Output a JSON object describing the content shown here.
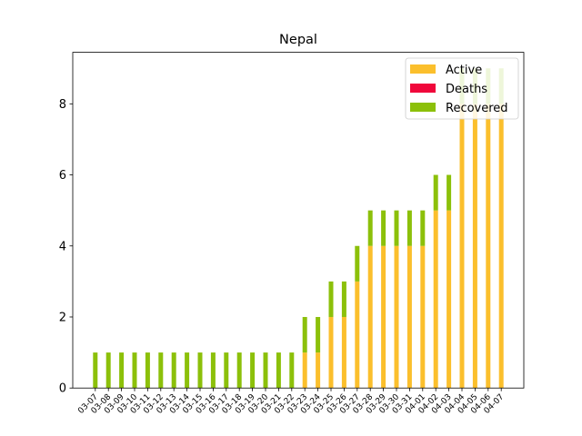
{
  "chart_data": {
    "type": "bar",
    "stacked": true,
    "title": "Nepal",
    "xlabel": "",
    "ylabel": "",
    "ylim": [
      0,
      9.45
    ],
    "yticks": [
      0,
      2,
      4,
      6,
      8
    ],
    "grid": false,
    "legend_position": "top-right",
    "categories": [
      "03-07",
      "03-08",
      "03-09",
      "03-10",
      "03-11",
      "03-12",
      "03-13",
      "03-14",
      "03-15",
      "03-16",
      "03-17",
      "03-18",
      "03-19",
      "03-20",
      "03-21",
      "03-22",
      "03-23",
      "03-24",
      "03-25",
      "03-26",
      "03-27",
      "03-28",
      "03-29",
      "03-30",
      "03-31",
      "04-01",
      "04-02",
      "04-03",
      "04-04",
      "04-05",
      "04-06",
      "04-07"
    ],
    "series": [
      {
        "name": "Active",
        "color": "#fbbf2c",
        "values": [
          0,
          0,
          0,
          0,
          0,
          0,
          0,
          0,
          0,
          0,
          0,
          0,
          0,
          0,
          0,
          0,
          1,
          1,
          2,
          2,
          3,
          4,
          4,
          4,
          4,
          4,
          5,
          5,
          8,
          8,
          8,
          8
        ]
      },
      {
        "name": "Deaths",
        "color": "#f0073b",
        "values": [
          0,
          0,
          0,
          0,
          0,
          0,
          0,
          0,
          0,
          0,
          0,
          0,
          0,
          0,
          0,
          0,
          0,
          0,
          0,
          0,
          0,
          0,
          0,
          0,
          0,
          0,
          0,
          0,
          0,
          0,
          0,
          0
        ]
      },
      {
        "name": "Recovered",
        "color": "#8cc00a",
        "values": [
          1,
          1,
          1,
          1,
          1,
          1,
          1,
          1,
          1,
          1,
          1,
          1,
          1,
          1,
          1,
          1,
          1,
          1,
          1,
          1,
          1,
          1,
          1,
          1,
          1,
          1,
          1,
          1,
          1,
          1,
          1,
          1
        ]
      }
    ]
  }
}
